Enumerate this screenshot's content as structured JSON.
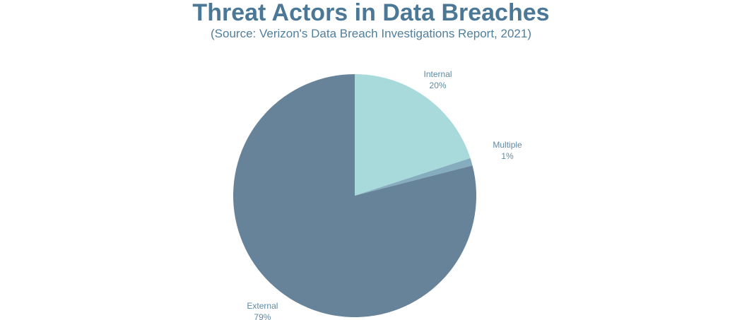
{
  "chart_data": {
    "type": "pie",
    "title": "Threat Actors in Data Breaches",
    "subtitle": "(Source: Verizon's Data Breach Investigations Report, 2021)",
    "slices": [
      {
        "label": "Internal",
        "value": 20,
        "value_label": "20%",
        "color": "#a8dadc"
      },
      {
        "label": "Multiple",
        "value": 1,
        "value_label": "1%",
        "color": "#85adbe"
      },
      {
        "label": "External",
        "value": 79,
        "value_label": "79%",
        "color": "#668399"
      }
    ],
    "label_color": "#5f8aa3",
    "start": "12 o'clock",
    "direction": "clockwise"
  }
}
